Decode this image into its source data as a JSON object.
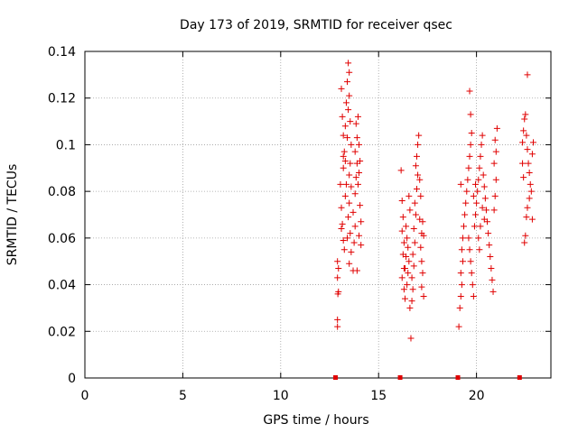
{
  "chart_data": {
    "type": "scatter",
    "title": "Day 173 of 2019, SRMTID for receiver qsec",
    "xlabel": "GPS time / hours",
    "ylabel": "SRMTID / TECUs",
    "xlim": [
      0,
      23.8
    ],
    "ylim": [
      0,
      0.14
    ],
    "x_ticks": [
      0,
      5,
      10,
      15,
      20
    ],
    "x_tick_labels": [
      "0",
      "5",
      "10",
      "15",
      "20"
    ],
    "y_ticks": [
      0,
      0.02,
      0.04,
      0.06,
      0.08,
      0.1,
      0.12,
      0.14
    ],
    "y_tick_labels": [
      "0",
      "0.02",
      "0.04",
      "0.06",
      "0.08",
      "0.1",
      "0.12",
      "0.14"
    ],
    "grid": true,
    "marker": "+",
    "color": "#e00000",
    "series": [
      {
        "name": "SRMTID",
        "points": [
          [
            12.9,
            0.022
          ],
          [
            12.9,
            0.025
          ],
          [
            12.95,
            0.037
          ],
          [
            12.92,
            0.036
          ],
          [
            12.9,
            0.043
          ],
          [
            12.95,
            0.047
          ],
          [
            12.9,
            0.05
          ],
          [
            13.1,
            0.124
          ],
          [
            13.15,
            0.112
          ],
          [
            13.2,
            0.104
          ],
          [
            13.2,
            0.09
          ],
          [
            13.05,
            0.083
          ],
          [
            13.1,
            0.073
          ],
          [
            13.15,
            0.066
          ],
          [
            13.2,
            0.059
          ],
          [
            13.1,
            0.064
          ],
          [
            13.25,
            0.097
          ],
          [
            13.3,
            0.093
          ],
          [
            13.35,
            0.118
          ],
          [
            13.3,
            0.108
          ],
          [
            13.4,
            0.127
          ],
          [
            13.45,
            0.135
          ],
          [
            13.5,
            0.131
          ],
          [
            13.5,
            0.121
          ],
          [
            13.45,
            0.115
          ],
          [
            13.4,
            0.103
          ],
          [
            13.55,
            0.11
          ],
          [
            13.6,
            0.1
          ],
          [
            13.55,
            0.092
          ],
          [
            13.5,
            0.087
          ],
          [
            13.6,
            0.082
          ],
          [
            13.5,
            0.075
          ],
          [
            13.45,
            0.069
          ],
          [
            13.55,
            0.062
          ],
          [
            13.6,
            0.054
          ],
          [
            13.5,
            0.049
          ],
          [
            13.7,
            0.046
          ],
          [
            13.75,
            0.058
          ],
          [
            13.8,
            0.065
          ],
          [
            13.7,
            0.071
          ],
          [
            13.8,
            0.079
          ],
          [
            13.85,
            0.086
          ],
          [
            13.9,
            0.092
          ],
          [
            13.8,
            0.097
          ],
          [
            13.9,
            0.103
          ],
          [
            13.85,
            0.109
          ],
          [
            13.95,
            0.112
          ],
          [
            14.0,
            0.1
          ],
          [
            14.05,
            0.093
          ],
          [
            14.0,
            0.088
          ],
          [
            13.95,
            0.083
          ],
          [
            14.05,
            0.074
          ],
          [
            14.1,
            0.067
          ],
          [
            14.0,
            0.061
          ],
          [
            14.1,
            0.057
          ],
          [
            13.9,
            0.046
          ],
          [
            13.3,
            0.078
          ],
          [
            13.35,
            0.083
          ],
          [
            13.2,
            0.095
          ],
          [
            13.4,
            0.06
          ],
          [
            13.25,
            0.055
          ],
          [
            16.15,
            0.089
          ],
          [
            16.2,
            0.076
          ],
          [
            16.25,
            0.069
          ],
          [
            16.2,
            0.063
          ],
          [
            16.3,
            0.058
          ],
          [
            16.25,
            0.053
          ],
          [
            16.3,
            0.047
          ],
          [
            16.2,
            0.043
          ],
          [
            16.3,
            0.038
          ],
          [
            16.35,
            0.034
          ],
          [
            16.4,
            0.065
          ],
          [
            16.45,
            0.06
          ],
          [
            16.5,
            0.056
          ],
          [
            16.55,
            0.05
          ],
          [
            16.5,
            0.045
          ],
          [
            16.45,
            0.04
          ],
          [
            16.6,
            0.03
          ],
          [
            16.65,
            0.017
          ],
          [
            16.7,
            0.033
          ],
          [
            16.75,
            0.038
          ],
          [
            16.7,
            0.043
          ],
          [
            16.8,
            0.048
          ],
          [
            16.75,
            0.053
          ],
          [
            16.85,
            0.058
          ],
          [
            16.8,
            0.064
          ],
          [
            16.9,
            0.07
          ],
          [
            16.85,
            0.075
          ],
          [
            16.95,
            0.081
          ],
          [
            17.0,
            0.087
          ],
          [
            16.9,
            0.091
          ],
          [
            16.95,
            0.095
          ],
          [
            17.0,
            0.1
          ],
          [
            17.05,
            0.104
          ],
          [
            17.1,
            0.085
          ],
          [
            17.15,
            0.078
          ],
          [
            17.1,
            0.068
          ],
          [
            17.2,
            0.062
          ],
          [
            17.15,
            0.056
          ],
          [
            17.2,
            0.05
          ],
          [
            17.25,
            0.045
          ],
          [
            17.2,
            0.039
          ],
          [
            17.3,
            0.035
          ],
          [
            17.25,
            0.067
          ],
          [
            17.3,
            0.061
          ],
          [
            16.6,
            0.072
          ],
          [
            16.55,
            0.078
          ],
          [
            16.4,
            0.052
          ],
          [
            16.35,
            0.047
          ],
          [
            19.1,
            0.022
          ],
          [
            19.15,
            0.03
          ],
          [
            19.2,
            0.035
          ],
          [
            19.25,
            0.04
          ],
          [
            19.2,
            0.045
          ],
          [
            19.3,
            0.05
          ],
          [
            19.25,
            0.055
          ],
          [
            19.3,
            0.06
          ],
          [
            19.35,
            0.065
          ],
          [
            19.2,
            0.083
          ],
          [
            19.4,
            0.07
          ],
          [
            19.45,
            0.075
          ],
          [
            19.5,
            0.08
          ],
          [
            19.55,
            0.085
          ],
          [
            19.6,
            0.09
          ],
          [
            19.65,
            0.095
          ],
          [
            19.7,
            0.1
          ],
          [
            19.75,
            0.105
          ],
          [
            19.7,
            0.113
          ],
          [
            19.65,
            0.123
          ],
          [
            19.6,
            0.06
          ],
          [
            19.65,
            0.055
          ],
          [
            19.7,
            0.05
          ],
          [
            19.75,
            0.045
          ],
          [
            19.8,
            0.04
          ],
          [
            19.85,
            0.035
          ],
          [
            19.9,
            0.065
          ],
          [
            19.95,
            0.07
          ],
          [
            20.0,
            0.075
          ],
          [
            20.05,
            0.08
          ],
          [
            20.1,
            0.085
          ],
          [
            20.15,
            0.09
          ],
          [
            20.2,
            0.095
          ],
          [
            20.25,
            0.1
          ],
          [
            20.3,
            0.104
          ],
          [
            20.35,
            0.087
          ],
          [
            20.4,
            0.082
          ],
          [
            20.45,
            0.077
          ],
          [
            20.5,
            0.072
          ],
          [
            20.55,
            0.067
          ],
          [
            20.6,
            0.062
          ],
          [
            20.65,
            0.057
          ],
          [
            20.7,
            0.052
          ],
          [
            20.75,
            0.047
          ],
          [
            20.8,
            0.042
          ],
          [
            20.85,
            0.037
          ],
          [
            20.9,
            0.072
          ],
          [
            20.95,
            0.078
          ],
          [
            21.0,
            0.085
          ],
          [
            20.9,
            0.092
          ],
          [
            21.0,
            0.097
          ],
          [
            20.95,
            0.102
          ],
          [
            21.05,
            0.107
          ],
          [
            20.1,
            0.06
          ],
          [
            20.15,
            0.055
          ],
          [
            20.2,
            0.065
          ],
          [
            19.85,
            0.078
          ],
          [
            19.95,
            0.083
          ],
          [
            20.3,
            0.073
          ],
          [
            20.4,
            0.068
          ],
          [
            22.35,
            0.101
          ],
          [
            22.4,
            0.106
          ],
          [
            22.45,
            0.111
          ],
          [
            22.5,
            0.113
          ],
          [
            22.55,
            0.104
          ],
          [
            22.6,
            0.098
          ],
          [
            22.65,
            0.092
          ],
          [
            22.7,
            0.088
          ],
          [
            22.75,
            0.083
          ],
          [
            22.7,
            0.077
          ],
          [
            22.6,
            0.073
          ],
          [
            22.55,
            0.069
          ],
          [
            22.5,
            0.061
          ],
          [
            22.45,
            0.058
          ],
          [
            22.4,
            0.086
          ],
          [
            22.35,
            0.092
          ],
          [
            22.8,
            0.08
          ],
          [
            22.85,
            0.068
          ],
          [
            22.85,
            0.096
          ],
          [
            22.9,
            0.101
          ],
          [
            22.6,
            0.13
          ]
        ]
      }
    ],
    "baseline_markers_x": [
      12.8,
      16.1,
      19.05,
      22.2
    ]
  }
}
